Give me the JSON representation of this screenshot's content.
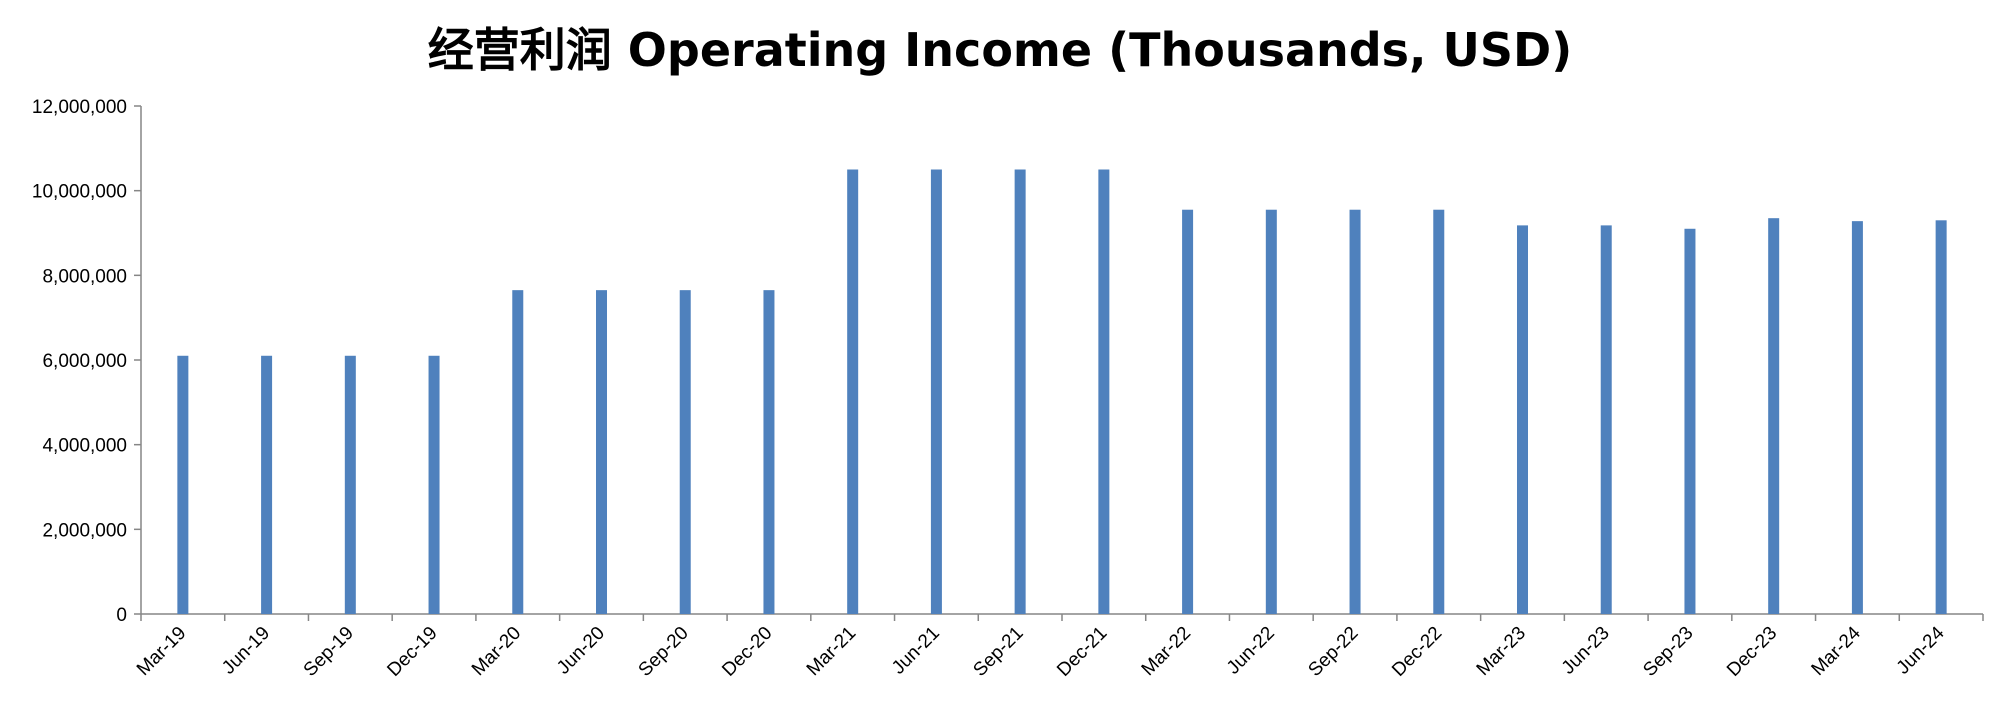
{
  "chart_data": {
    "type": "bar",
    "title": "经营利润 Operating Income (Thousands, USD)",
    "xlabel": "",
    "ylabel": "",
    "categories": [
      "Mar-19",
      "Jun-19",
      "Sep-19",
      "Dec-19",
      "Mar-20",
      "Jun-20",
      "Sep-20",
      "Dec-20",
      "Mar-21",
      "Jun-21",
      "Sep-21",
      "Dec-21",
      "Mar-22",
      "Jun-22",
      "Sep-22",
      "Dec-22",
      "Mar-23",
      "Jun-23",
      "Sep-23",
      "Dec-23",
      "Mar-24",
      "Jun-24"
    ],
    "series": [
      {
        "values": [
          6100000,
          6100000,
          6100000,
          6100000,
          7650000,
          7650000,
          7650000,
          7650000,
          10500000,
          10500000,
          10500000,
          10500000,
          9550000,
          9550000,
          9550000,
          9550000,
          9180000,
          9180000,
          9100000,
          9350000,
          9280000,
          9300000
        ]
      }
    ],
    "ylim": [
      0,
      12000000
    ],
    "yticks": [
      0,
      2000000,
      4000000,
      6000000,
      8000000,
      10000000,
      12000000
    ],
    "ytick_labels": [
      "0",
      "2,000,000",
      "4,000,000",
      "6,000,000",
      "8,000,000",
      "10,000,000",
      "12,000,000"
    ],
    "grid": false,
    "legend": "none",
    "colors": {
      "bar": "#4f81bd",
      "axis": "#868686"
    }
  }
}
